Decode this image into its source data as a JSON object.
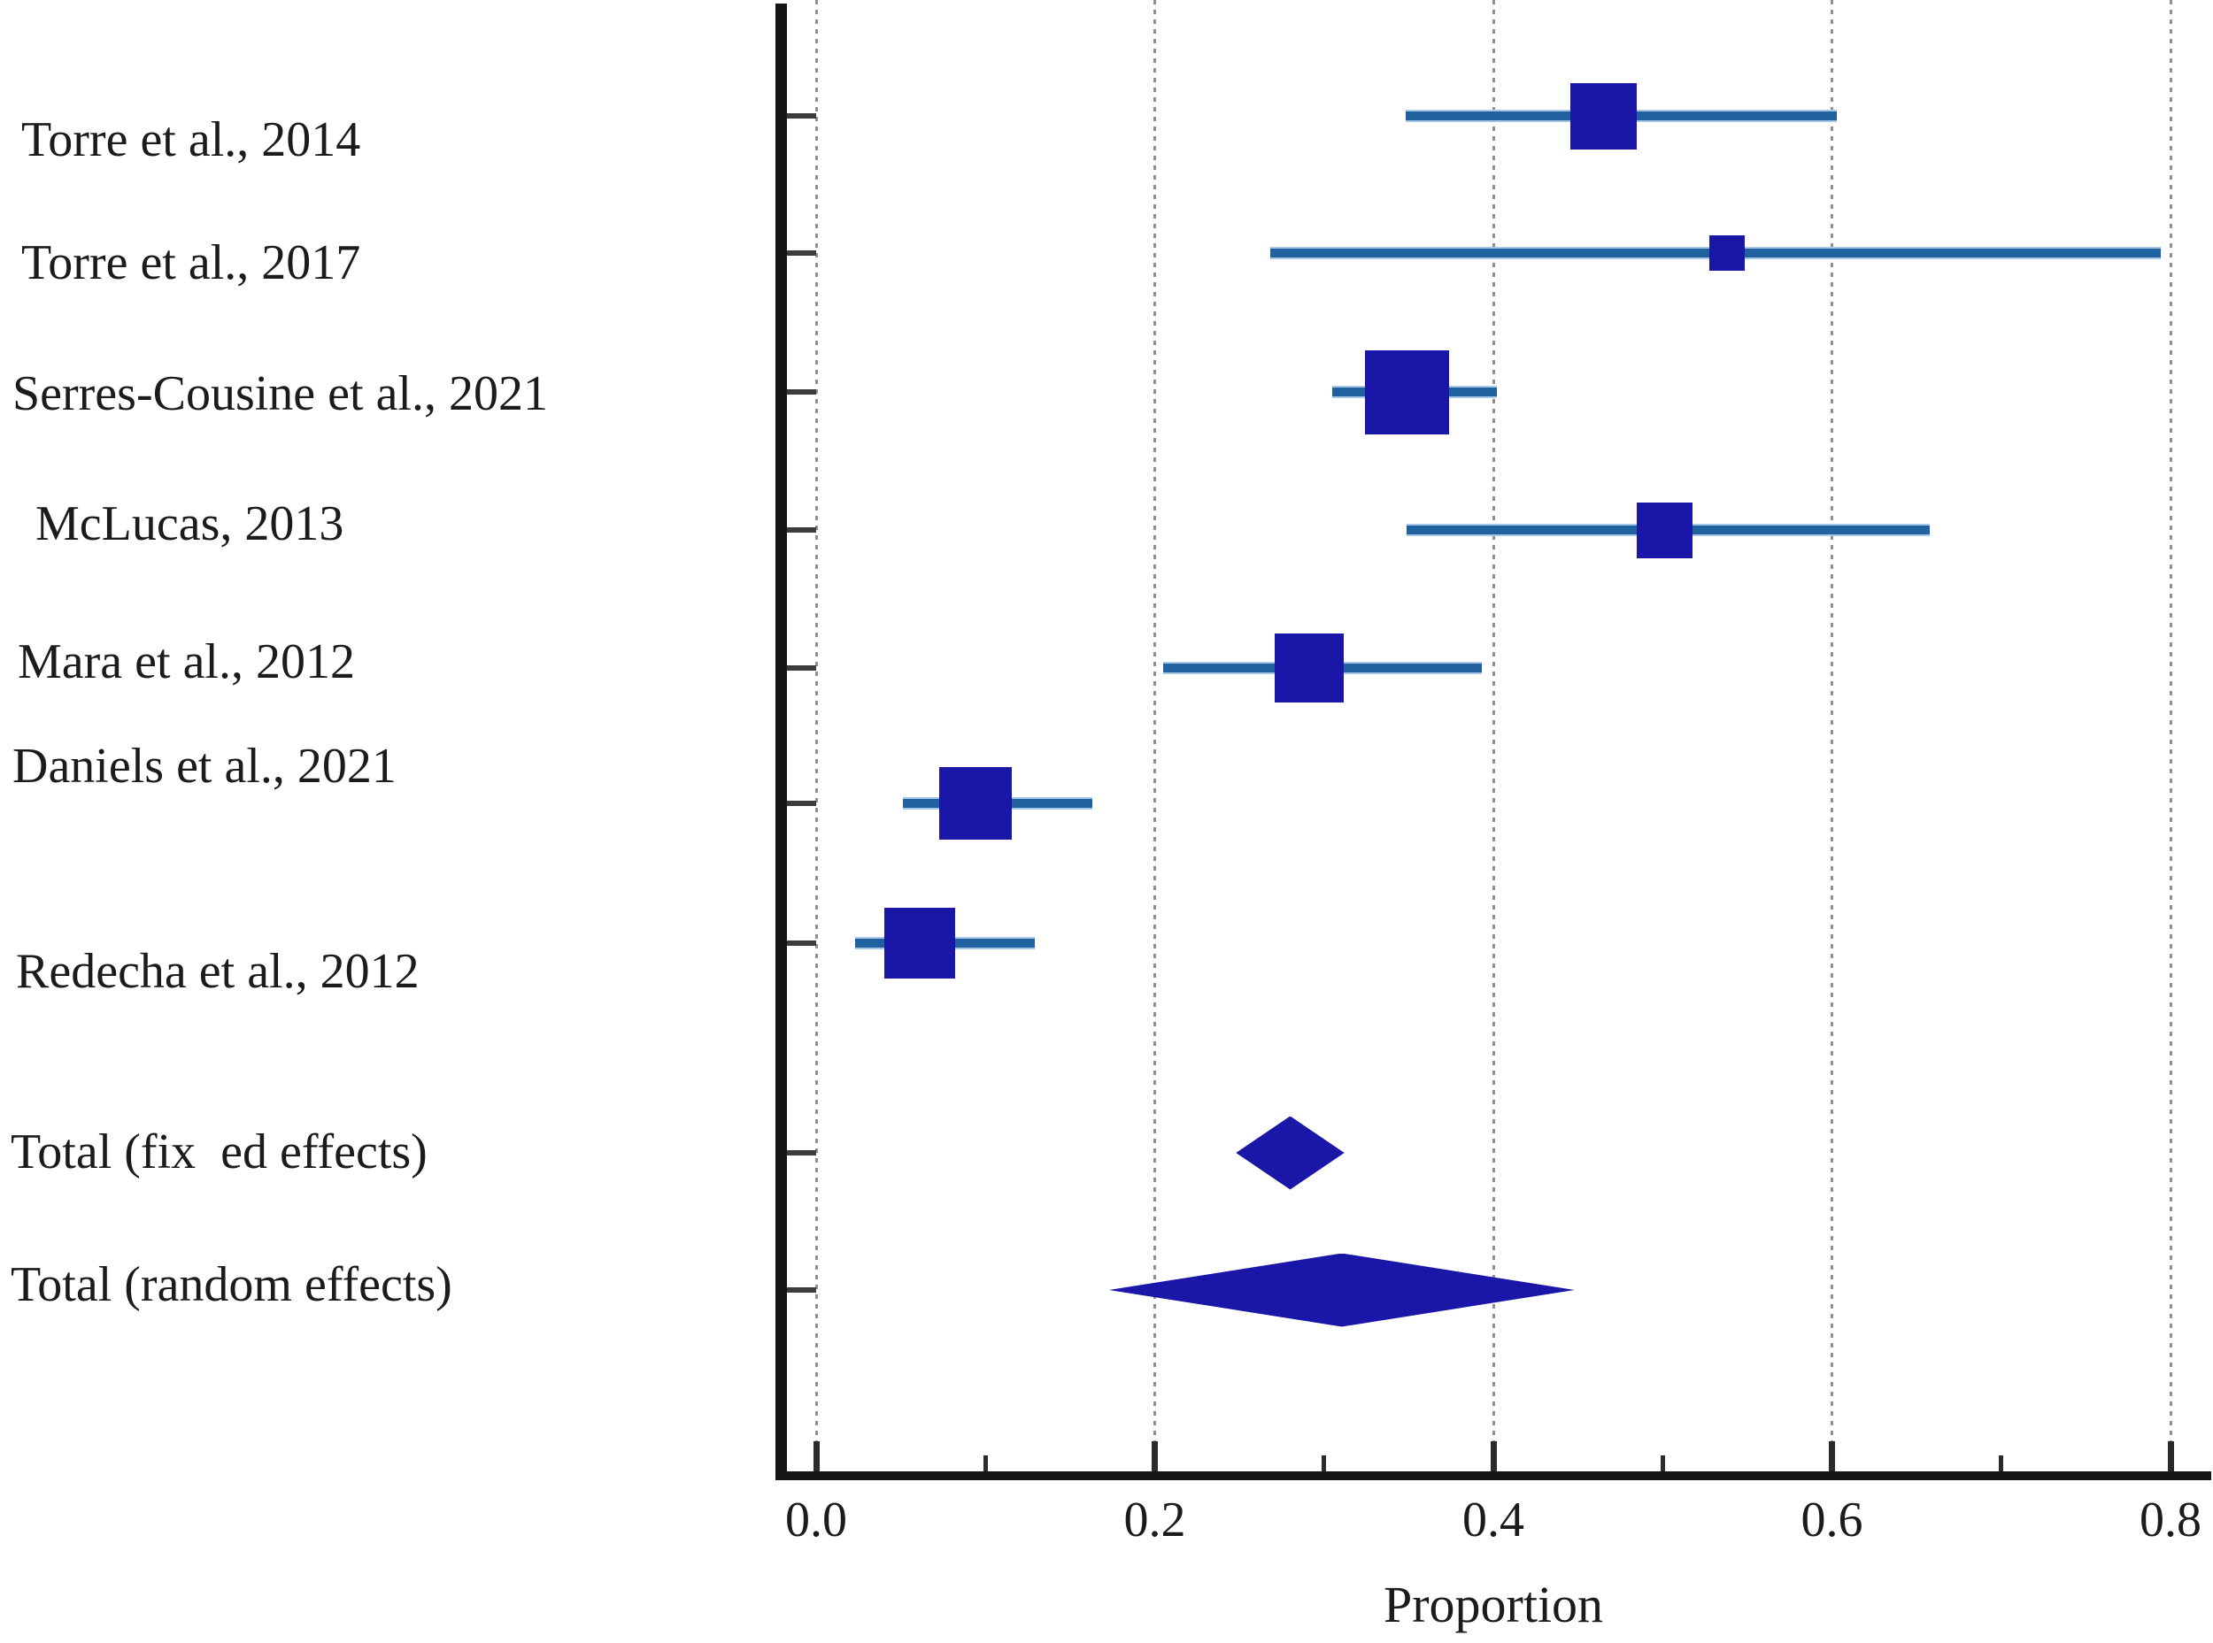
{
  "chart_data": {
    "type": "forest",
    "title": "",
    "xlabel": "Proportion",
    "xlim": [
      0.0,
      0.8
    ],
    "grid": "dotted-vertical",
    "legend": "none",
    "x_ticks": [
      {
        "value": 0.0,
        "label": "0.0"
      },
      {
        "value": 0.2,
        "label": "0.2"
      },
      {
        "value": 0.4,
        "label": "0.4"
      },
      {
        "value": 0.6,
        "label": "0.6"
      },
      {
        "value": 0.8,
        "label": "0.8"
      }
    ],
    "x_minor_ticks": [
      0.1,
      0.3,
      0.5,
      0.7
    ],
    "studies": [
      {
        "label": "Torre et al., 2014",
        "estimate": 0.465,
        "ci_low": 0.348,
        "ci_high": 0.603,
        "marker": "square",
        "marker_size_px": 75
      },
      {
        "label": "Torre et al., 2017",
        "estimate": 0.538,
        "ci_low": 0.268,
        "ci_high": 0.794,
        "marker": "square",
        "marker_size_px": 40
      },
      {
        "label": "Serres-Cousine et al., 2021",
        "estimate": 0.349,
        "ci_low": 0.305,
        "ci_high": 0.402,
        "marker": "square",
        "marker_size_px": 95
      },
      {
        "label": "McLucas, 2013",
        "estimate": 0.501,
        "ci_low": 0.349,
        "ci_high": 0.658,
        "marker": "square",
        "marker_size_px": 63
      },
      {
        "label": "Mara et al., 2012",
        "estimate": 0.291,
        "ci_low": 0.205,
        "ci_high": 0.393,
        "marker": "square",
        "marker_size_px": 78
      },
      {
        "label": "Daniels et al., 2021",
        "estimate": 0.094,
        "ci_low": 0.051,
        "ci_high": 0.163,
        "marker": "square",
        "marker_size_px": 82
      },
      {
        "label": "Redecha et al., 2012",
        "estimate": 0.061,
        "ci_low": 0.023,
        "ci_high": 0.129,
        "marker": "square",
        "marker_size_px": 80
      }
    ],
    "totals": [
      {
        "label": "Total (fix  ed effects)",
        "estimate": 0.28,
        "ci_low": 0.248,
        "ci_high": 0.312,
        "marker": "diamond"
      },
      {
        "label": "Total (random effects)",
        "estimate": 0.311,
        "ci_low": 0.173,
        "ci_high": 0.448,
        "marker": "diamond"
      }
    ],
    "colors": {
      "marker": "#1a17a8",
      "ci_line": "#2061a0",
      "ci_line_edge": "#a6c8e6",
      "axis": "#161616",
      "grid": "#8f8f8f",
      "text": "#1b1b1b"
    }
  }
}
